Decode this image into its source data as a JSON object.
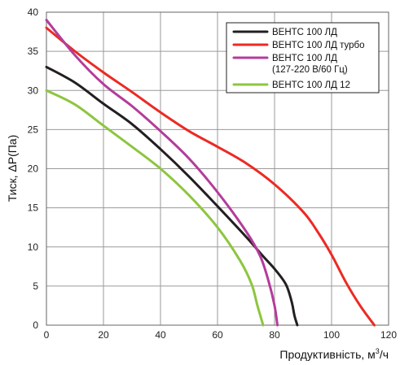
{
  "chart_data": {
    "type": "line",
    "title": "",
    "xlabel": "Продуктивність, м",
    "xlabel_sup": "3",
    "xlabel_tail": "/ч",
    "ylabel": "Тиск, ΔP(Па)",
    "xlim": [
      0,
      120
    ],
    "ylim": [
      0,
      40
    ],
    "x_ticks": [
      0,
      20,
      40,
      60,
      80,
      100,
      120
    ],
    "y_ticks": [
      0,
      5,
      10,
      15,
      20,
      25,
      30,
      35,
      40
    ],
    "grid": true,
    "legend_position": "top-right",
    "series": [
      {
        "name": "ВЕНТС 100 ЛД",
        "color": "#231f20",
        "x": [
          0,
          10,
          20,
          30,
          40,
          50,
          60,
          70,
          76,
          80,
          84,
          86,
          87,
          88
        ],
        "y": [
          33,
          31,
          28.3,
          25.7,
          22.5,
          19,
          15.2,
          11.3,
          8.8,
          7.2,
          5.2,
          3,
          1.2,
          0
        ]
      },
      {
        "name": "ВЕНТС 100 ЛД турбо",
        "color": "#ec2a23",
        "x": [
          0,
          10,
          20,
          30,
          40,
          50,
          60,
          70,
          80,
          90,
          95,
          100,
          105,
          110,
          115
        ],
        "y": [
          38,
          35,
          32.3,
          29.8,
          27.2,
          24.8,
          22.8,
          20.7,
          18,
          14.5,
          12,
          9,
          5.5,
          2.5,
          0
        ]
      },
      {
        "name": "ВЕНТС 100 ЛД",
        "name_line2": "(127-220 В/60 Гц)",
        "color": "#b43c9a",
        "x": [
          0,
          10,
          20,
          30,
          40,
          50,
          60,
          70,
          75,
          78,
          80,
          81
        ],
        "y": [
          39,
          34.5,
          30.8,
          28,
          24.8,
          21.3,
          17,
          12,
          8.8,
          5.5,
          2.5,
          0
        ]
      },
      {
        "name": "ВЕНТС 100 ЛД 12",
        "color": "#8dc63f",
        "x": [
          0,
          10,
          20,
          30,
          40,
          50,
          60,
          68,
          72,
          74,
          76
        ],
        "y": [
          30,
          28.2,
          25.5,
          22.8,
          20,
          16.6,
          12.5,
          8.2,
          5.2,
          2.5,
          0
        ]
      }
    ]
  }
}
